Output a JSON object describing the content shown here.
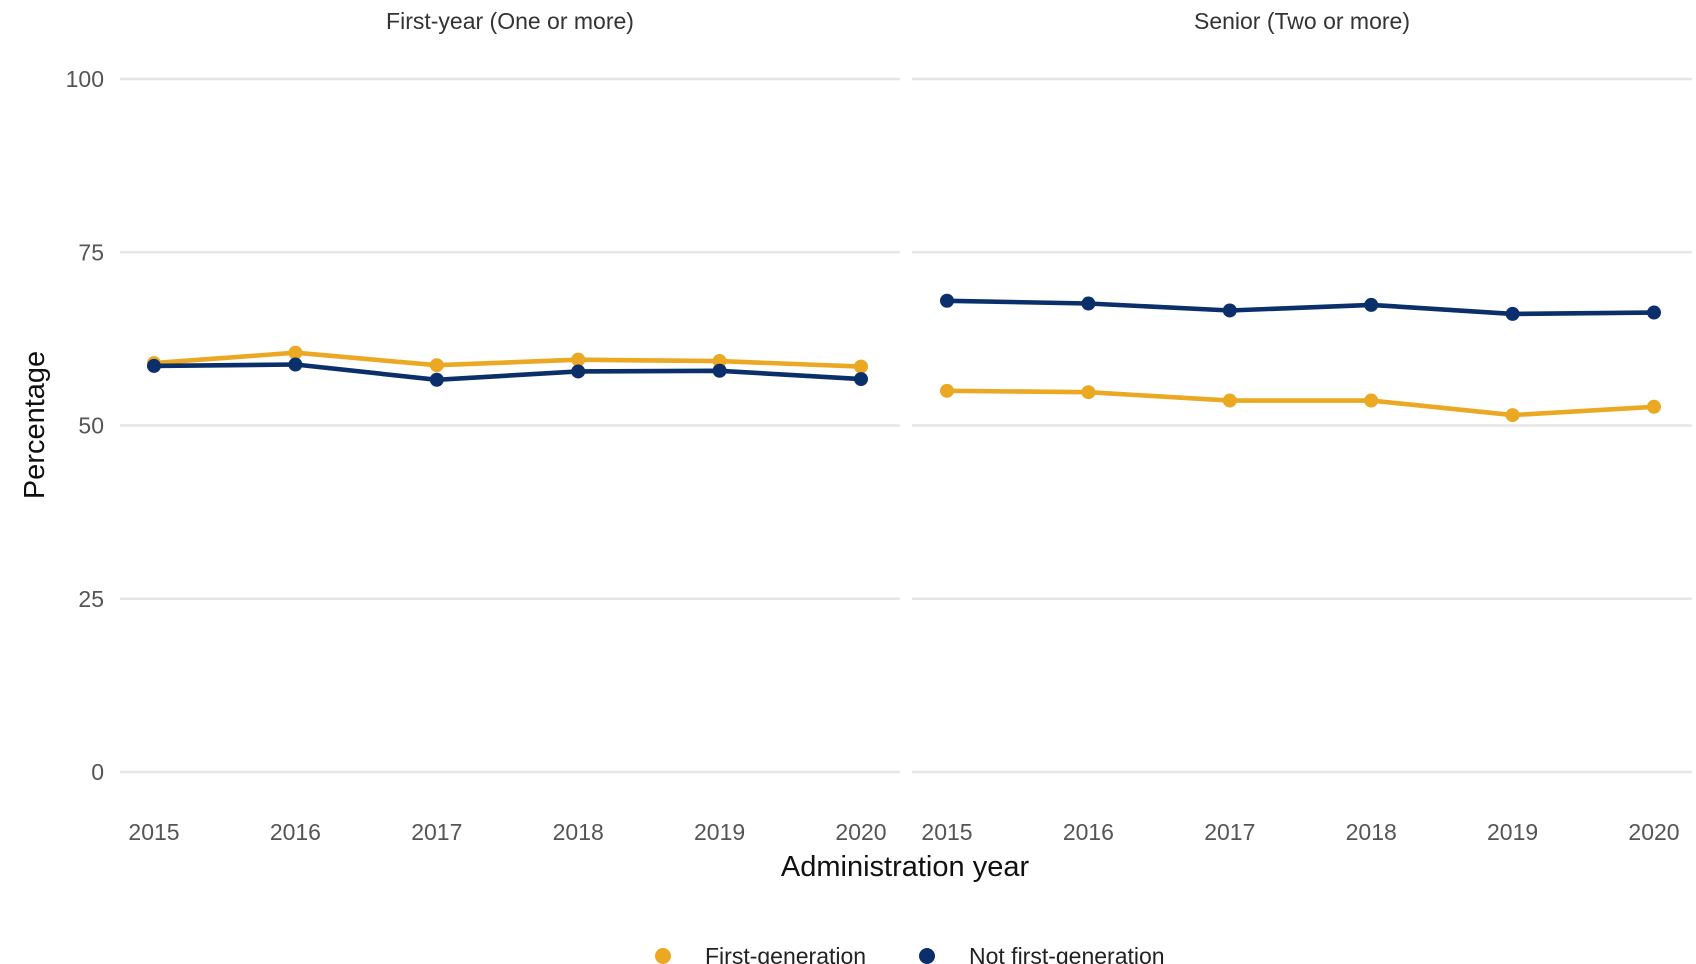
{
  "chart_data": {
    "type": "line",
    "xlabel": "Administration year",
    "ylabel": "Percentage",
    "ylim": [
      0,
      100
    ],
    "yticks": [
      0,
      25,
      50,
      75,
      100
    ],
    "x": [
      2015,
      2016,
      2017,
      2018,
      2019,
      2020
    ],
    "grid": true,
    "legend_placement": "bottom",
    "colors": {
      "First-generation": "#eaa823",
      "Not first-generation": "#0a2f6b"
    },
    "legend": [
      "First-generation",
      "Not first-generation"
    ],
    "panels": [
      {
        "title": "First-year (One or more)",
        "series": [
          {
            "name": "First-generation",
            "values": [
              59.0,
              60.5,
              58.7,
              59.5,
              59.3,
              58.5
            ]
          },
          {
            "name": "Not first-generation",
            "values": [
              58.6,
              58.8,
              56.6,
              57.8,
              57.9,
              56.7
            ]
          }
        ]
      },
      {
        "title": "Senior (Two or more)",
        "series": [
          {
            "name": "First-generation",
            "values": [
              55.0,
              54.8,
              53.6,
              53.6,
              51.5,
              52.7
            ]
          },
          {
            "name": "Not first-generation",
            "values": [
              68.0,
              67.6,
              66.6,
              67.4,
              66.1,
              66.3
            ]
          }
        ]
      }
    ]
  }
}
